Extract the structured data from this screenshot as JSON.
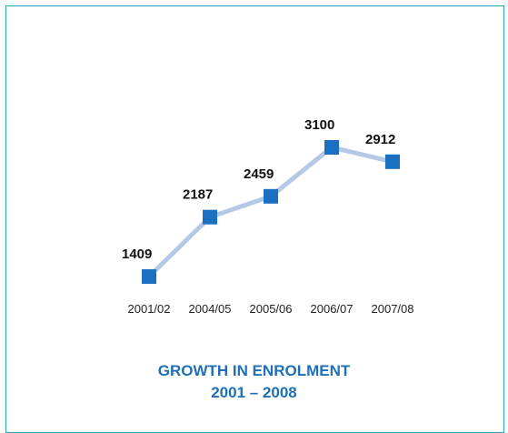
{
  "colors": {
    "frame": "#29a3b8",
    "line": "#b5c8e8",
    "marker": "#1a6fc0",
    "title": "#1f6fb7"
  },
  "chart_data": {
    "type": "line",
    "title": "GROWTH IN ENROLMENT",
    "subtitle": "2001 – 2008",
    "categories": [
      "2001/02",
      "2004/05",
      "2005/06",
      "2006/07",
      "2007/08"
    ],
    "series": [
      {
        "values": [
          1409,
          2187,
          2459,
          3100,
          2912
        ]
      }
    ],
    "data_labels": [
      "1409",
      "2187",
      "2459",
      "3100",
      "2912"
    ],
    "xlabel": "",
    "ylabel": "",
    "grid": false,
    "legend": "none"
  }
}
